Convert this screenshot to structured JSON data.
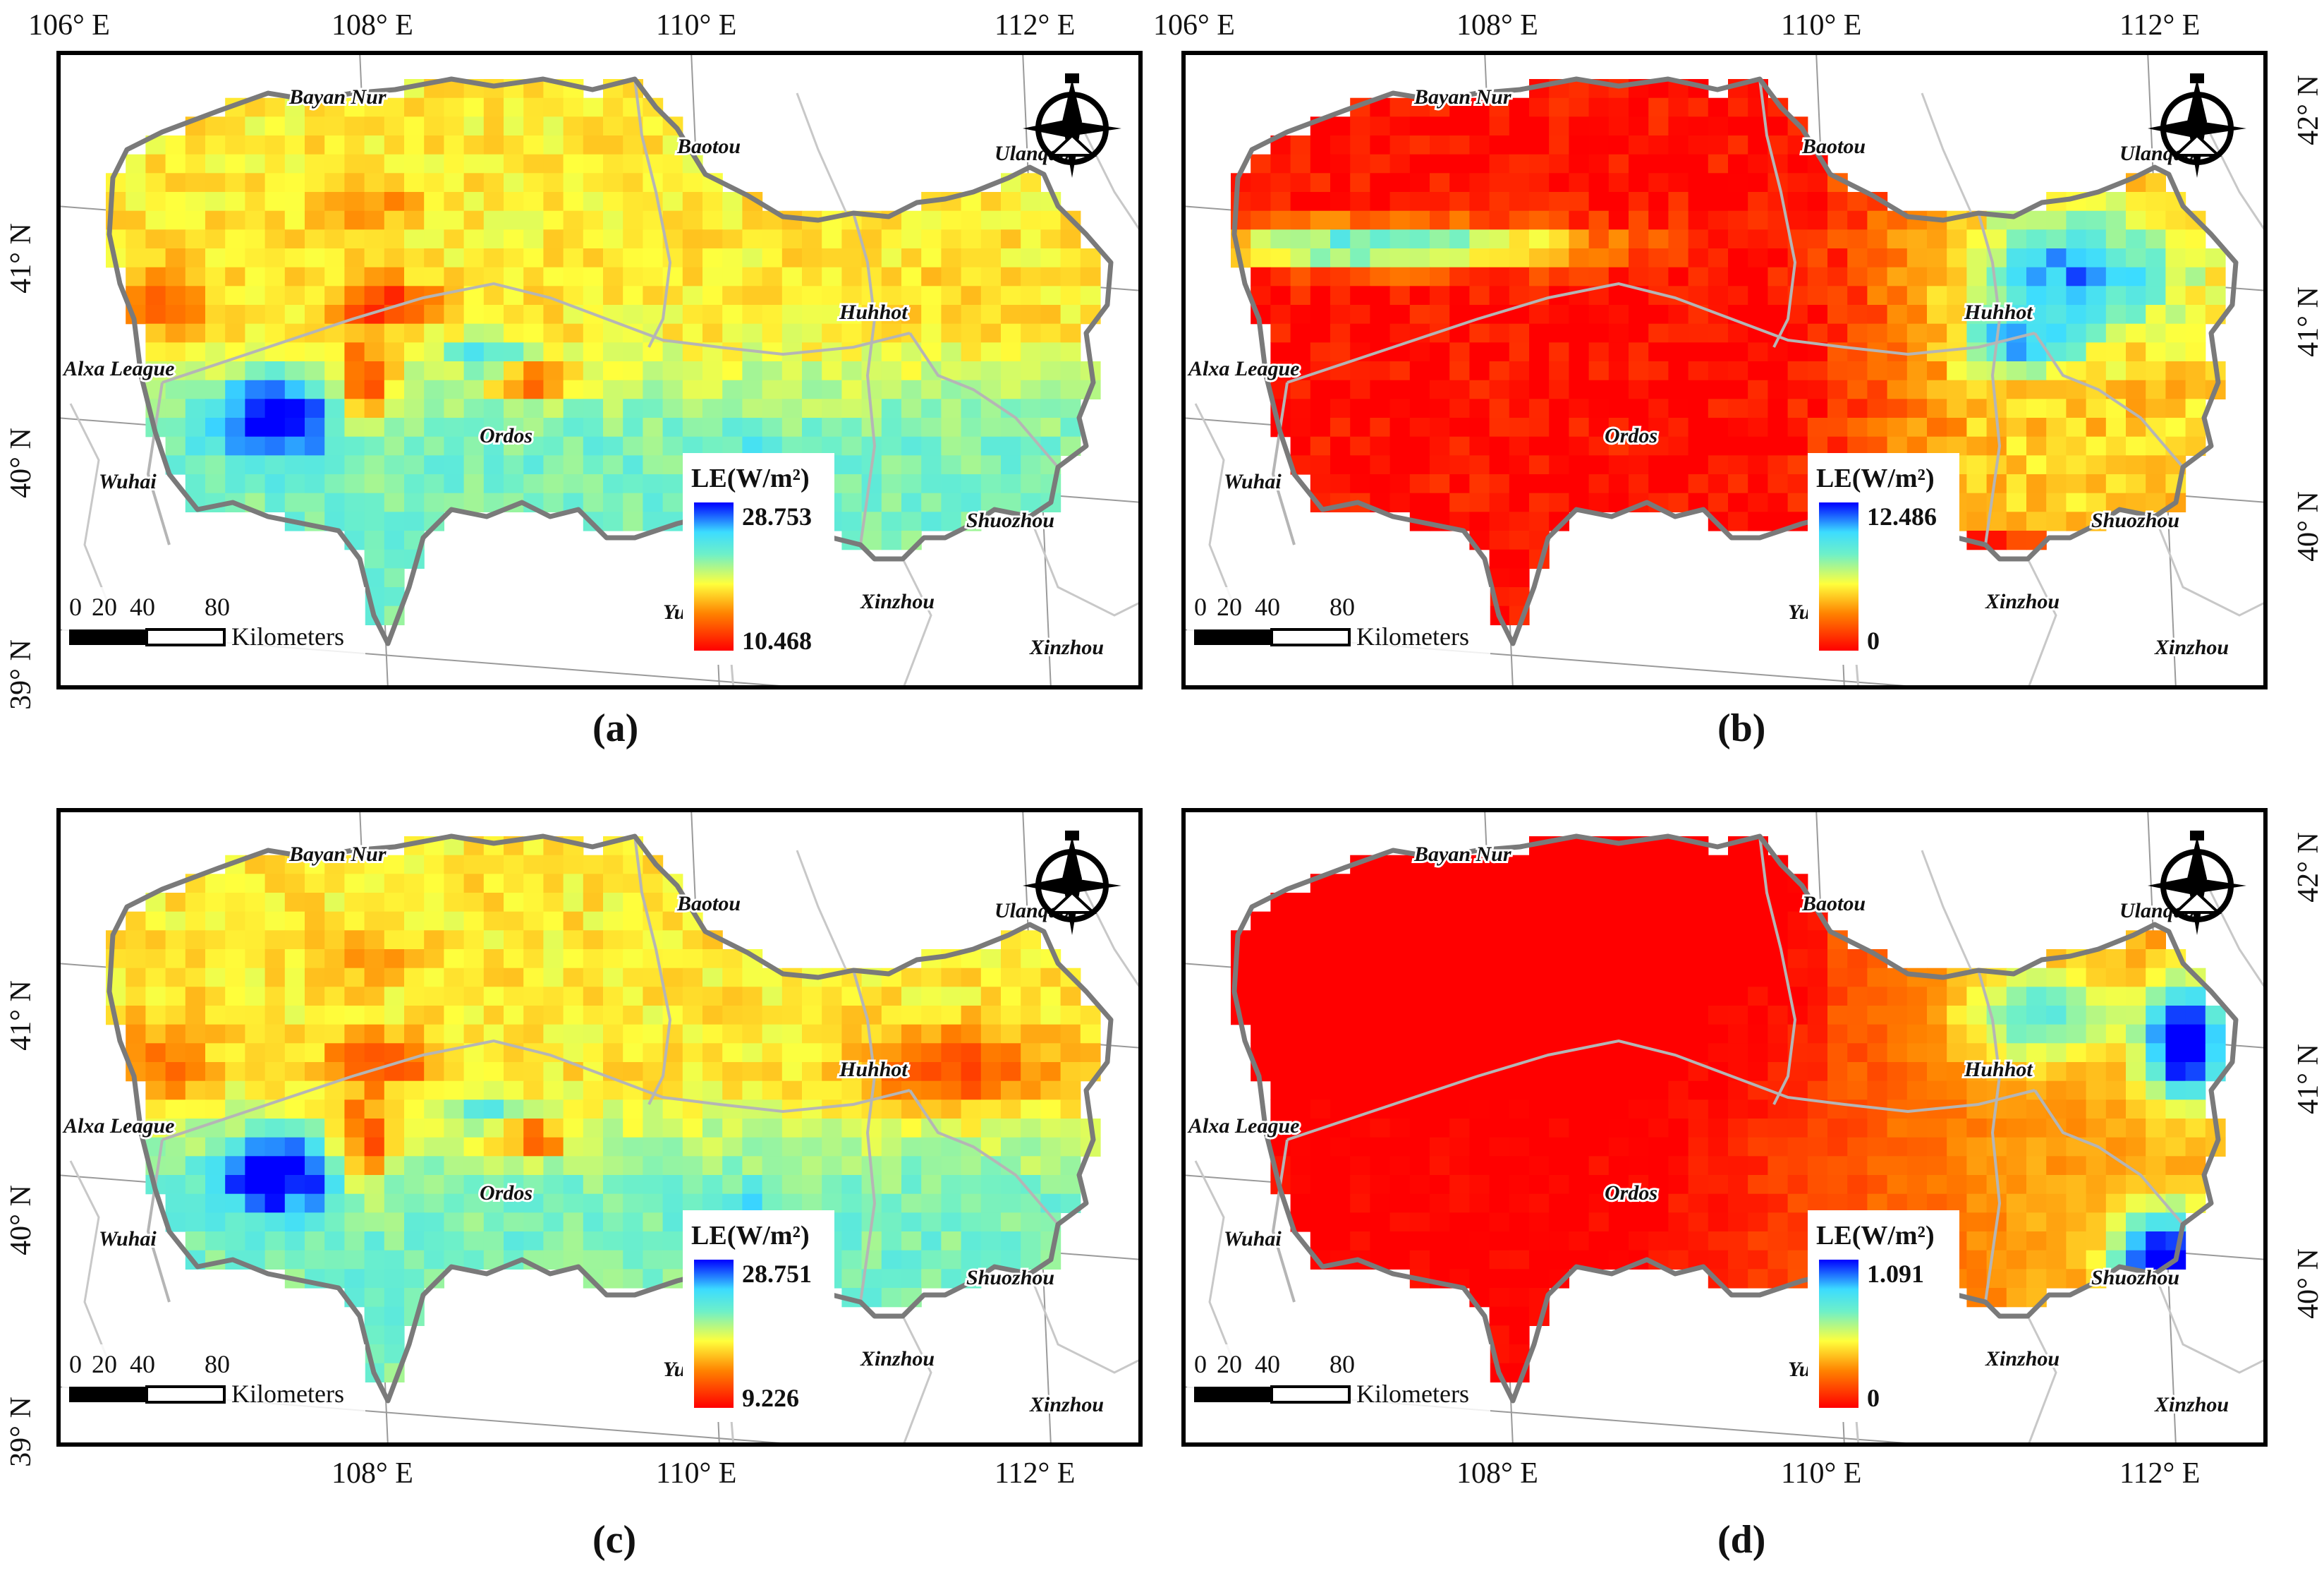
{
  "panels": [
    {
      "id": "a",
      "caption": "(a)",
      "legend": {
        "title": "LE(W/m²)",
        "max": "28.753",
        "min": "10.468"
      },
      "top_lon_labels": [
        "106° E",
        "108° E",
        "110° E",
        "112° E"
      ],
      "bottom_lon_labels": [],
      "left_lat_labels": [
        "41° N",
        "40° N",
        "39° N"
      ],
      "right_lat_labels": [],
      "scheme": "a"
    },
    {
      "id": "b",
      "caption": "(b)",
      "legend": {
        "title": "LE(W/m²)",
        "max": "12.486",
        "min": "0"
      },
      "top_lon_labels": [
        "106° E",
        "108° E",
        "110° E",
        "112° E"
      ],
      "bottom_lon_labels": [],
      "left_lat_labels": [],
      "right_lat_labels": [
        "42° N",
        "41° N",
        "40° N"
      ],
      "scheme": "b"
    },
    {
      "id": "c",
      "caption": "(c)",
      "legend": {
        "title": "LE(W/m²)",
        "max": "28.751",
        "min": "9.226"
      },
      "top_lon_labels": [],
      "bottom_lon_labels": [
        "108° E",
        "110° E",
        "112° E"
      ],
      "left_lat_labels": [
        "41° N",
        "40° N",
        "39° N"
      ],
      "right_lat_labels": [],
      "scheme": "c"
    },
    {
      "id": "d",
      "caption": "(d)",
      "legend": {
        "title": "LE(W/m²)",
        "max": "1.091",
        "min": "0"
      },
      "top_lon_labels": [],
      "bottom_lon_labels": [
        "108° E",
        "110° E",
        "112° E"
      ],
      "left_lat_labels": [],
      "right_lat_labels": [
        "42° N",
        "41° N",
        "40° N"
      ],
      "scheme": "d"
    }
  ],
  "places": [
    "Bayan Nur",
    "Baotou",
    "Ulanqab",
    "Huhhot",
    "Alxa League",
    "Ordos",
    "Wuhai",
    "Shuozhou",
    "Xinzhou",
    "Xinzhou",
    "Yul"
  ],
  "scale_bar": {
    "ticks": [
      "0",
      "20",
      "40",
      "80"
    ],
    "unit": "Kilometers"
  },
  "colors": {
    "red": "#ff0000",
    "orange": "#ff8c00",
    "yellow": "#ffff33",
    "cyan": "#40e8ff",
    "blue": "#0000ff",
    "frame": "#000000"
  },
  "icons": [
    "north-arrow-icon"
  ]
}
